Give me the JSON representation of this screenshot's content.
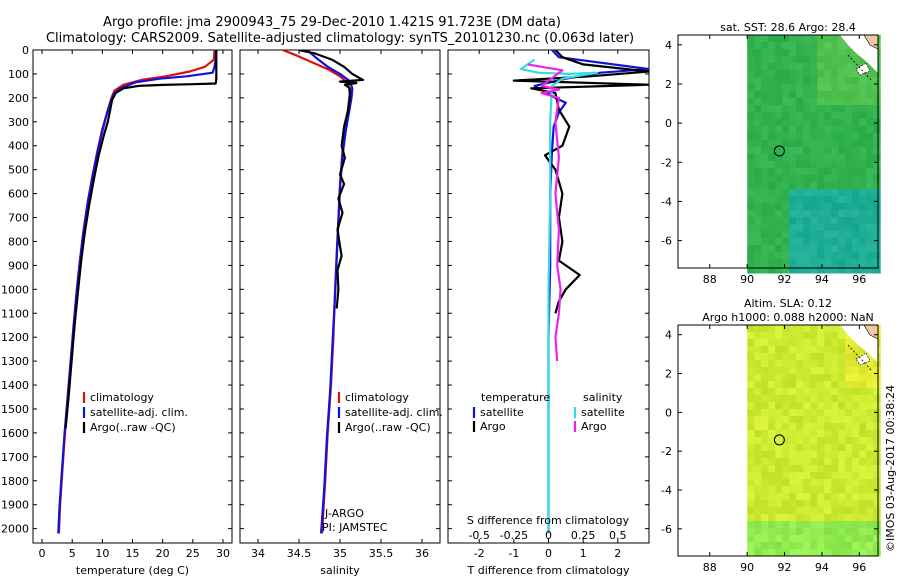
{
  "header": {
    "line1": "Argo profile: jma 2900943_75 29-Dec-2010 1.421S 91.723E (DM data)",
    "line2": "Climatology: CARS2009. Satellite-adjusted climatology: synTS_20101230.nc (0.063d later)"
  },
  "footer": {
    "credit": "©IMOS 03-Aug-2017 00:38:24"
  },
  "colors": {
    "climatology": "#dd1111",
    "satellite": "#1111dd",
    "argo": "#000000",
    "sal_sat": "#33dddd",
    "sal_argo": "#ee22ee"
  },
  "depth_axis": {
    "ticks": [
      0,
      100,
      200,
      300,
      400,
      500,
      600,
      700,
      800,
      900,
      1000,
      1100,
      1200,
      1300,
      1400,
      1500,
      1600,
      1700,
      1800,
      1900,
      2000
    ],
    "ylim": [
      0,
      2060
    ]
  },
  "chart_data": [
    {
      "id": "temperature",
      "type": "line",
      "xlabel": "temperature (deg C)",
      "xlim": [
        -1.5,
        31.5
      ],
      "xticks": [
        0,
        5,
        10,
        15,
        20,
        25,
        30
      ],
      "ylabel": "depth",
      "legend": [
        "climatology",
        "satellite-adj. clim.",
        "Argo(..raw -QC)"
      ],
      "series": [
        {
          "name": "climatology",
          "color": "#dd1111",
          "points": [
            [
              28.6,
              0
            ],
            [
              28.5,
              40
            ],
            [
              27,
              70
            ],
            [
              24.5,
              90
            ],
            [
              20.5,
              110
            ],
            [
              16.5,
              125
            ],
            [
              13.5,
              145
            ],
            [
              12,
              170
            ],
            [
              11.5,
              200
            ],
            [
              10.8,
              260
            ],
            [
              10,
              330
            ],
            [
              9.2,
              420
            ],
            [
              8.4,
              520
            ],
            [
              7.6,
              630
            ],
            [
              6.9,
              750
            ],
            [
              6.3,
              880
            ],
            [
              5.8,
              1000
            ],
            [
              5.3,
              1150
            ],
            [
              4.8,
              1300
            ],
            [
              4.3,
              1450
            ],
            [
              3.8,
              1600
            ],
            [
              3.4,
              1750
            ],
            [
              3.0,
              1900
            ],
            [
              2.8,
              2020
            ]
          ]
        },
        {
          "name": "satellite-adj. clim.",
          "color": "#1111dd",
          "points": [
            [
              28.8,
              0
            ],
            [
              28.8,
              40
            ],
            [
              28.6,
              70
            ],
            [
              28.3,
              95
            ],
            [
              24,
              110
            ],
            [
              19.5,
              120
            ],
            [
              15.5,
              135
            ],
            [
              13,
              160
            ],
            [
              12,
              180
            ],
            [
              11.3,
              220
            ],
            [
              10.6,
              280
            ],
            [
              9.9,
              350
            ],
            [
              9.1,
              440
            ],
            [
              8.3,
              540
            ],
            [
              7.5,
              650
            ],
            [
              6.8,
              770
            ],
            [
              6.2,
              900
            ],
            [
              5.7,
              1020
            ],
            [
              5.2,
              1160
            ],
            [
              4.7,
              1310
            ],
            [
              4.2,
              1460
            ],
            [
              3.7,
              1610
            ],
            [
              3.3,
              1760
            ],
            [
              2.9,
              1910
            ],
            [
              2.7,
              2020
            ]
          ]
        },
        {
          "name": "Argo(..raw -QC)",
          "color": "#000000",
          "points": [
            [
              28.9,
              0
            ],
            [
              28.9,
              30
            ],
            [
              28.9,
              80
            ],
            [
              28.9,
              120
            ],
            [
              28.8,
              140
            ],
            [
              25,
              143
            ],
            [
              20,
              146
            ],
            [
              16,
              150
            ],
            [
              13.5,
              160
            ],
            [
              12.2,
              180
            ],
            [
              11.6,
              210
            ],
            [
              11.3,
              250
            ],
            [
              10.9,
              300
            ],
            [
              10.2,
              360
            ],
            [
              9.4,
              440
            ],
            [
              8.6,
              540
            ],
            [
              7.8,
              650
            ],
            [
              7.1,
              760
            ],
            [
              6.5,
              880
            ],
            [
              6.0,
              1000
            ],
            [
              5.4,
              1150
            ],
            [
              4.9,
              1300
            ],
            [
              4.4,
              1450
            ],
            [
              3.9,
              1580
            ]
          ]
        }
      ]
    },
    {
      "id": "salinity",
      "type": "line",
      "xlabel": "salinity",
      "xlim": [
        33.78,
        36.22
      ],
      "xticks": [
        34,
        34.5,
        35,
        35.5,
        36
      ],
      "legend": [
        "climatology",
        "satellite-adj. clim.",
        "Argo(..raw -QC)"
      ],
      "annotation": [
        "J-ARGO",
        "PI: JAMSTEC"
      ],
      "series": [
        {
          "name": "climatology",
          "color": "#dd1111",
          "points": [
            [
              34.3,
              0
            ],
            [
              34.45,
              20
            ],
            [
              34.65,
              50
            ],
            [
              34.85,
              80
            ],
            [
              35.0,
              110
            ],
            [
              35.1,
              140
            ],
            [
              35.12,
              180
            ],
            [
              35.1,
              240
            ],
            [
              35.07,
              320
            ],
            [
              35.03,
              420
            ],
            [
              35.0,
              560
            ],
            [
              34.98,
              700
            ],
            [
              34.96,
              850
            ],
            [
              34.94,
              1000
            ],
            [
              34.92,
              1200
            ],
            [
              34.89,
              1400
            ],
            [
              34.85,
              1600
            ],
            [
              34.82,
              1800
            ],
            [
              34.78,
              2020
            ]
          ]
        },
        {
          "name": "satellite-adj. clim.",
          "color": "#1111dd",
          "points": [
            [
              34.6,
              0
            ],
            [
              34.7,
              30
            ],
            [
              34.85,
              70
            ],
            [
              35.0,
              100
            ],
            [
              35.12,
              130
            ],
            [
              35.15,
              160
            ],
            [
              35.14,
              200
            ],
            [
              35.11,
              260
            ],
            [
              35.07,
              340
            ],
            [
              35.03,
              440
            ],
            [
              35.0,
              580
            ],
            [
              34.98,
              720
            ],
            [
              34.96,
              870
            ],
            [
              34.94,
              1020
            ],
            [
              34.91,
              1220
            ],
            [
              34.88,
              1420
            ],
            [
              34.84,
              1620
            ],
            [
              34.81,
              1820
            ],
            [
              34.77,
              2020
            ]
          ]
        },
        {
          "name": "Argo(..raw -QC)",
          "color": "#000000",
          "points": [
            [
              34.5,
              0
            ],
            [
              34.7,
              15
            ],
            [
              34.9,
              40
            ],
            [
              35.05,
              70
            ],
            [
              35.15,
              100
            ],
            [
              35.28,
              125
            ],
            [
              35.0,
              132
            ],
            [
              35.2,
              138
            ],
            [
              35.06,
              145
            ],
            [
              35.12,
              160
            ],
            [
              35.12,
              200
            ],
            [
              35.1,
              250
            ],
            [
              35.05,
              320
            ],
            [
              35.02,
              400
            ],
            [
              35.06,
              450
            ],
            [
              35.0,
              520
            ],
            [
              35.05,
              560
            ],
            [
              34.98,
              620
            ],
            [
              35.03,
              680
            ],
            [
              34.97,
              750
            ],
            [
              35.0,
              820
            ],
            [
              35.02,
              860
            ],
            [
              34.97,
              920
            ],
            [
              34.98,
              1000
            ],
            [
              34.96,
              1080
            ]
          ]
        }
      ]
    },
    {
      "id": "difference",
      "type": "line",
      "xlabel": "T difference from climatology",
      "xlabel_top": "S difference from climatology",
      "xlim": [
        -2.9,
        2.9
      ],
      "xticks": [
        -2,
        -1,
        0,
        1,
        2
      ],
      "xticks_top": [
        "-0.5",
        "-0.25",
        "0",
        "0.25",
        "0.5"
      ],
      "legend": {
        "temperature_title": "temperature",
        "salinity_title": "salinity",
        "items": [
          "satellite",
          "Argo",
          "satellite",
          "Argo"
        ]
      },
      "series": [
        {
          "name": "temperature satellite",
          "color": "#1111dd",
          "points": [
            [
              0.1,
              0
            ],
            [
              0.3,
              30
            ],
            [
              2.9,
              80
            ],
            [
              1.5,
              95
            ],
            [
              0.5,
              120
            ],
            [
              -0.4,
              150
            ],
            [
              -0.1,
              175
            ],
            [
              0.2,
              200
            ],
            [
              0.5,
              220
            ],
            [
              0.3,
              260
            ],
            [
              0.15,
              320
            ],
            [
              0.1,
              420
            ],
            [
              0.05,
              600
            ],
            [
              0.05,
              900
            ],
            [
              0.0,
              1200
            ],
            [
              0.0,
              1600
            ],
            [
              0.0,
              2020
            ]
          ]
        },
        {
          "name": "temperature Argo",
          "color": "#000000",
          "points": [
            [
              0.2,
              0
            ],
            [
              0.4,
              30
            ],
            [
              1.0,
              60
            ],
            [
              2.9,
              90
            ],
            [
              1.2,
              110
            ],
            [
              -1.0,
              128
            ],
            [
              2.9,
              145
            ],
            [
              -0.5,
              160
            ],
            [
              0.2,
              180
            ],
            [
              0.3,
              250
            ],
            [
              0.6,
              320
            ],
            [
              0.4,
              400
            ],
            [
              -0.1,
              440
            ],
            [
              0.2,
              500
            ],
            [
              0.4,
              600
            ],
            [
              0.3,
              700
            ],
            [
              0.4,
              800
            ],
            [
              0.3,
              880
            ],
            [
              0.9,
              940
            ],
            [
              0.5,
              1000
            ],
            [
              0.3,
              1050
            ],
            [
              0.2,
              1100
            ]
          ]
        },
        {
          "name": "salinity satellite",
          "color": "#33dddd",
          "points": [
            [
              -0.4,
              40
            ],
            [
              -0.8,
              80
            ],
            [
              -0.3,
              95
            ],
            [
              0.6,
              100
            ],
            [
              1.4,
              95
            ],
            [
              0.4,
              120
            ],
            [
              0.1,
              150
            ],
            [
              0.05,
              300
            ],
            [
              0.05,
              600
            ],
            [
              0.0,
              1000
            ],
            [
              0.0,
              1600
            ],
            [
              0.0,
              2020
            ]
          ]
        },
        {
          "name": "salinity Argo",
          "color": "#ee22ee",
          "points": [
            [
              -0.6,
              60
            ],
            [
              0.4,
              85
            ],
            [
              -0.2,
              150
            ],
            [
              0.3,
              165
            ],
            [
              -0.2,
              180
            ],
            [
              0.3,
              200
            ],
            [
              0.2,
              300
            ],
            [
              0.3,
              450
            ],
            [
              0.2,
              600
            ],
            [
              0.3,
              750
            ],
            [
              0.25,
              900
            ],
            [
              0.35,
              1000
            ],
            [
              0.3,
              1100
            ],
            [
              0.2,
              1200
            ],
            [
              0.25,
              1300
            ]
          ]
        }
      ]
    },
    {
      "id": "sst_map",
      "type": "heatmap",
      "title": "sat. SST: 28.6  Argo: 28.4",
      "xticks": [
        88,
        90,
        92,
        94,
        96
      ],
      "yticks": [
        4,
        2,
        0,
        -2,
        -4,
        -6
      ],
      "xlim": [
        86.3,
        97.0
      ],
      "ylim": [
        -7.4,
        4.5
      ],
      "data_lon_range": [
        90,
        97
      ],
      "marker": {
        "lon": 91.723,
        "lat": -1.421
      }
    },
    {
      "id": "sla_map",
      "type": "heatmap",
      "title_lines": [
        "Altim. SLA: 0.12",
        "Argo h1000: 0.088  h2000: NaN"
      ],
      "xticks": [
        88,
        90,
        92,
        94,
        96
      ],
      "yticks": [
        4,
        2,
        0,
        -2,
        -4,
        -6
      ],
      "xlim": [
        86.3,
        97.0
      ],
      "ylim": [
        -7.4,
        4.5
      ],
      "data_lon_range": [
        90,
        97
      ],
      "marker": {
        "lon": 91.723,
        "lat": -1.421
      }
    }
  ]
}
